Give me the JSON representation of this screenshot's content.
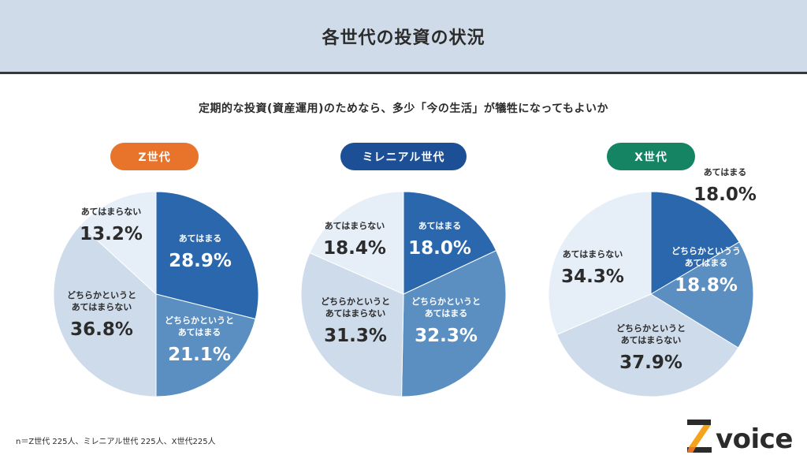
{
  "header": {
    "title": "各世代の投資の状況"
  },
  "question": "定期的な投資(資産運用)のためなら、多少「今の生活」が犠牲になってもよいか",
  "colors": {
    "header_bg": "#cfdbe8",
    "slice_agree": "#2a67ad",
    "slice_somewhat_agree": "#5b8fc2",
    "slice_somewhat_disagree": "#cddbea",
    "slice_disagree": "#e6eef7",
    "text_dark": "#2b2b2b",
    "text_light": "#ffffff",
    "pill_z": "#e8732a",
    "pill_millennial": "#1c4f96",
    "pill_x": "#148463"
  },
  "groups": [
    {
      "label": "Z世代",
      "pill_color": "#e8732a"
    },
    {
      "label": "ミレニアル世代",
      "pill_color": "#1c4f96"
    },
    {
      "label": "X世代",
      "pill_color": "#148463"
    }
  ],
  "chart_data": [
    {
      "type": "pie",
      "title": "Z世代",
      "start_angle_deg": 0,
      "direction": "clockwise",
      "slices": [
        {
          "label": "あてはまる",
          "value": 28.9,
          "display": "28.9%"
        },
        {
          "label": "どちらかというとあてはまる",
          "label_lines": [
            "どちらかというと",
            "あてはまる"
          ],
          "value": 21.1,
          "display": "21.1%"
        },
        {
          "label": "どちらかというとあてはまらない",
          "label_lines": [
            "どちらかというと",
            "あてはまらない"
          ],
          "value": 36.8,
          "display": "36.8%"
        },
        {
          "label": "あてはまらない",
          "value": 13.2,
          "display": "13.2%"
        }
      ]
    },
    {
      "type": "pie",
      "title": "ミレニアル世代",
      "start_angle_deg": 0,
      "direction": "clockwise",
      "slices": [
        {
          "label": "あてはまる",
          "value": 18.0,
          "display": "18.0%"
        },
        {
          "label": "どちらかというとあてはまる",
          "label_lines": [
            "どちらかというと",
            "あてはまる"
          ],
          "value": 32.3,
          "display": "32.3%"
        },
        {
          "label": "どちらかというとあてはまらない",
          "label_lines": [
            "どちらかというと",
            "あてはまらない"
          ],
          "value": 31.3,
          "display": "31.3%"
        },
        {
          "label": "あてはまらない",
          "value": 18.4,
          "display": "18.4%"
        }
      ]
    },
    {
      "type": "pie",
      "title": "X世代",
      "start_angle_deg": 0,
      "direction": "clockwise",
      "slices": [
        {
          "label": "あてはまる",
          "value": 18.0,
          "display": "18.0%"
        },
        {
          "label": "どちらかというあてはまる",
          "label_lines": [
            "どちらかというう",
            "あてはまる"
          ],
          "value": 18.8,
          "display": "18.8%"
        },
        {
          "label": "どちらかというとあてはまらない",
          "label_lines": [
            "どちらかというと",
            "あてはまらない"
          ],
          "value": 37.9,
          "display": "37.9%"
        },
        {
          "label": "あてはまらない",
          "value": 34.3,
          "display": "34.3%"
        }
      ]
    }
  ],
  "footnote": "n＝Z世代 225人、ミレニアル世代 225人、X世代225人",
  "logo": {
    "text": "voice",
    "icon": "z-logo-icon"
  }
}
